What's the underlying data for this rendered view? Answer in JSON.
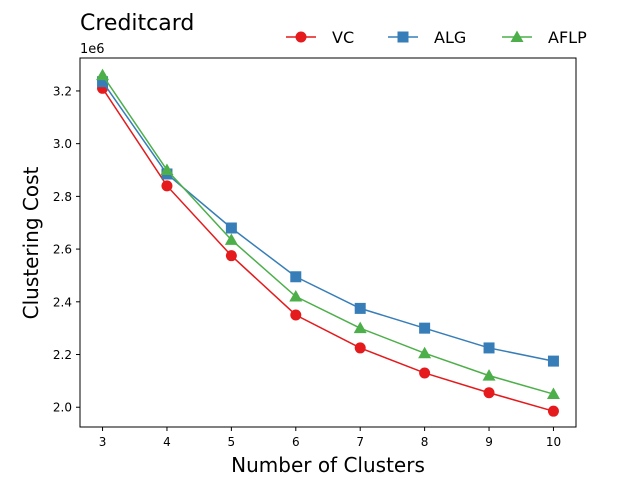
{
  "chart_data": {
    "type": "line",
    "title": "Creditcard",
    "xlabel": "Number of Clusters",
    "ylabel": "Clustering Cost",
    "y_multiplier_label": "1e6",
    "x": [
      3,
      4,
      5,
      6,
      7,
      8,
      9,
      10
    ],
    "xticks": [
      "3",
      "4",
      "5",
      "6",
      "7",
      "8",
      "9",
      "10"
    ],
    "yticks": [
      "2.0",
      "2.2",
      "2.4",
      "2.6",
      "2.8",
      "3.0",
      "3.2"
    ],
    "ytick_values": [
      2.0,
      2.2,
      2.4,
      2.6,
      2.8,
      3.0,
      3.2
    ],
    "xlim": [
      2.65,
      10.35
    ],
    "ylim": [
      1.925,
      3.325
    ],
    "grid": false,
    "legend_position": "top-right, above plot",
    "series": [
      {
        "name": "VC",
        "color": "#e41a1c",
        "marker": "circle",
        "values": [
          3.21,
          2.84,
          2.575,
          2.35,
          2.225,
          2.13,
          2.055,
          1.985
        ]
      },
      {
        "name": "ALG",
        "color": "#377eb8",
        "marker": "square",
        "values": [
          3.235,
          2.885,
          2.68,
          2.495,
          2.375,
          2.3,
          2.225,
          2.175
        ]
      },
      {
        "name": "AFLP",
        "color": "#4daf4a",
        "marker": "triangle",
        "values": [
          3.26,
          2.9,
          2.635,
          2.42,
          2.3,
          2.205,
          2.12,
          2.05
        ]
      }
    ]
  }
}
